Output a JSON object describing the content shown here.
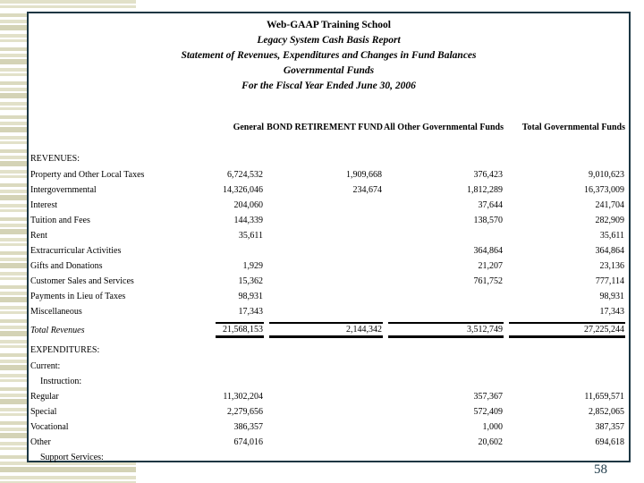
{
  "slide": {
    "page_number": "58"
  },
  "colors": {
    "box_border": "#1c3643",
    "stripe_beige": "#e2e1c9",
    "stripe_dark": "#d4d3b6",
    "page_number": "#1f3b4a",
    "text": "#000000"
  },
  "report": {
    "title_lines": [
      "Web-GAAP Training School",
      "Legacy System Cash Basis Report",
      "Statement of Revenues, Expenditures and Changes in Fund Balances",
      "Governmental Funds",
      "For the Fiscal Year Ended June 30, 2006"
    ],
    "columns": [
      "General",
      "BOND RETIREMENT FUND",
      "All Other Governmental Funds",
      "Total Governmental Funds"
    ],
    "rows": [
      {
        "label": "REVENUES:",
        "type": "section",
        "values": [
          "",
          "",
          "",
          ""
        ]
      },
      {
        "label": "Property and Other Local Taxes",
        "values": [
          "6,724,532",
          "1,909,668",
          "376,423",
          "9,010,623"
        ]
      },
      {
        "label": "Intergovernmental",
        "values": [
          "14,326,046",
          "234,674",
          "1,812,289",
          "16,373,009"
        ]
      },
      {
        "label": "Interest",
        "values": [
          "204,060",
          "",
          "37,644",
          "241,704"
        ]
      },
      {
        "label": "Tuition and Fees",
        "values": [
          "144,339",
          "",
          "138,570",
          "282,909"
        ]
      },
      {
        "label": "Rent",
        "values": [
          "35,611",
          "",
          "",
          "35,611"
        ]
      },
      {
        "label": "Extracurricular Activities",
        "values": [
          "",
          "",
          "364,864",
          "364,864"
        ]
      },
      {
        "label": "Gifts and Donations",
        "values": [
          "1,929",
          "",
          "21,207",
          "23,136"
        ]
      },
      {
        "label": "Customer Sales and Services",
        "values": [
          "15,362",
          "",
          "761,752",
          "777,114"
        ]
      },
      {
        "label": "Payments in Lieu of Taxes",
        "values": [
          "98,931",
          "",
          "",
          "98,931"
        ]
      },
      {
        "label": "Miscellaneous",
        "values": [
          "17,343",
          "",
          "",
          "17,343"
        ]
      },
      {
        "label": "Total Revenues",
        "type": "total",
        "values": [
          "21,568,153",
          "2,144,342",
          "3,512,749",
          "27,225,244"
        ]
      },
      {
        "label": "EXPENDITURES:",
        "type": "section",
        "values": [
          "",
          "",
          "",
          ""
        ]
      },
      {
        "label": "Current:",
        "values": [
          "",
          "",
          "",
          ""
        ]
      },
      {
        "label": "Instruction:",
        "indent": 1,
        "values": [
          "",
          "",
          "",
          ""
        ]
      },
      {
        "label": "Regular",
        "values": [
          "11,302,204",
          "",
          "357,367",
          "11,659,571"
        ]
      },
      {
        "label": "Special",
        "values": [
          "2,279,656",
          "",
          "572,409",
          "2,852,065"
        ]
      },
      {
        "label": "Vocational",
        "values": [
          "386,357",
          "",
          "1,000",
          "387,357"
        ]
      },
      {
        "label": "Other",
        "values": [
          "674,016",
          "",
          "20,602",
          "694,618"
        ]
      },
      {
        "label": "Support Services:",
        "indent": 1,
        "values": [
          "",
          "",
          "",
          ""
        ]
      }
    ]
  }
}
